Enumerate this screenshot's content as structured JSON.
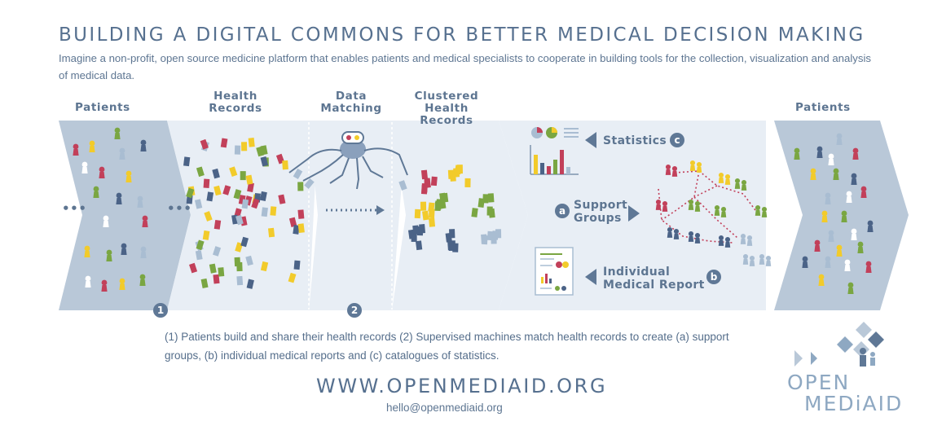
{
  "title": "BUILDING A DIGITAL COMMONS FOR BETTER MEDICAL DECISION MAKING",
  "subtitle": "Imagine a non-profit, open source medicine platform that enables patients and medical specialists to cooperate in building tools for the collection, visualization and analysis of medical data.",
  "stages": {
    "patients_left": "Patients",
    "health_records": "Health Records",
    "data_matching": "Data Matching",
    "clustered": "Clustered Health Records",
    "patients_right": "Patients"
  },
  "outputs": {
    "statistics": "Statistics",
    "statistics_badge": "c",
    "support_groups": "Support Groups",
    "support_badge": "a",
    "individual_report": "Individual Medical Report",
    "report_badge": "b"
  },
  "steps": {
    "one": "1",
    "two": "2"
  },
  "ellipsis": "•••",
  "caption": "(1) Patients build and share their health records (2) Supervised machines match health records to create (a) support groups, (b) individual medical reports and (c) catalogues of statistics.",
  "url": "WWW.OPENMEDIAID.ORG",
  "email": "hello@openmediaid.org",
  "logo": {
    "line1": "OPEN",
    "line2": "MEDiAID"
  },
  "colors": {
    "panel_dark": "#b9c8d8",
    "panel_light": "#e8eef5",
    "text": "#56708f",
    "red": "#c2405a",
    "yellow": "#f2cb2b",
    "green": "#7aa642",
    "navy": "#4b6387",
    "lightblue": "#a9bdd2"
  },
  "icons": [
    "person-icon",
    "document-icon",
    "spider-robot-icon",
    "arrow-left-icon",
    "pie-chart-icon",
    "bar-chart-icon",
    "report-icon",
    "logo-mark-icon"
  ]
}
